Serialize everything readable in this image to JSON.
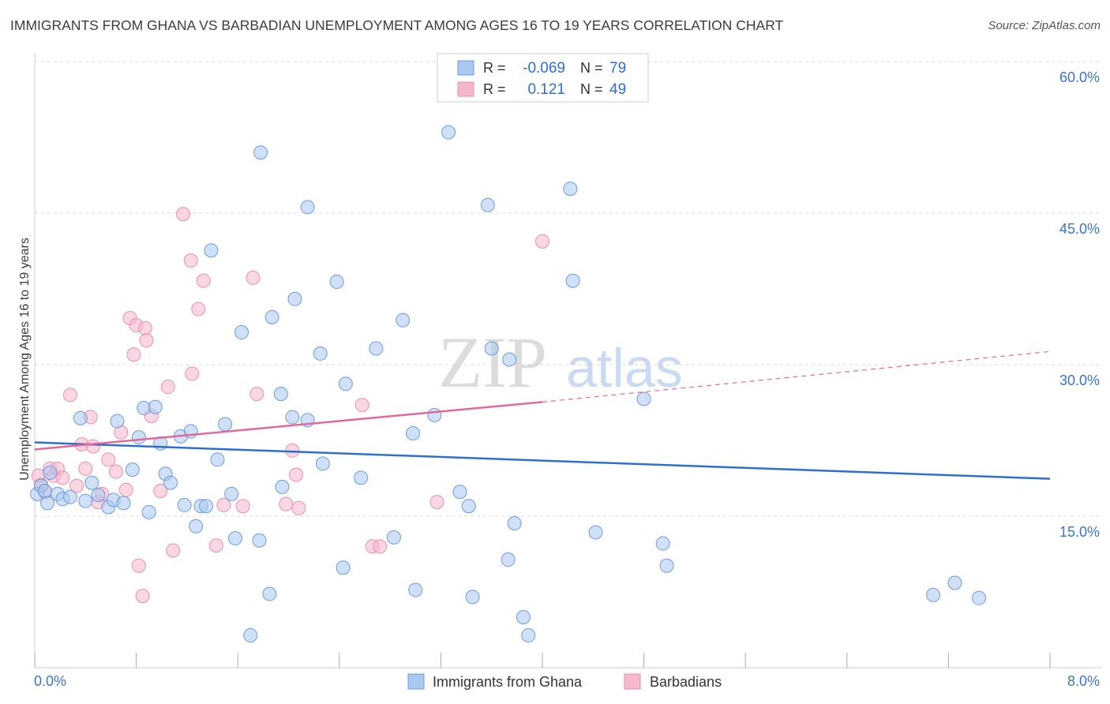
{
  "header": {
    "title": "IMMIGRANTS FROM GHANA VS BARBADIAN UNEMPLOYMENT AMONG AGES 16 TO 19 YEARS CORRELATION CHART",
    "source": "Source: ZipAtlas.com"
  },
  "watermark": {
    "zip": "ZIP",
    "atlas": "atlas"
  },
  "colors": {
    "ghana_fill": "#aac8f0",
    "ghana_stroke": "#6b9be0",
    "ghana_line": "#2d6fcf",
    "barb_fill": "#f5b7cb",
    "barb_stroke": "#e88fae",
    "barb_line": "#e0699a",
    "axis_label": "#3a74c9",
    "grid": "#d8d8d8"
  },
  "legend": {
    "rows": [
      {
        "r_label": "R =",
        "r_value": "-0.069",
        "n_label": "N =",
        "n_value": "79"
      },
      {
        "r_label": "R =",
        "r_value": "0.121",
        "n_label": "N =",
        "n_value": "49"
      }
    ]
  },
  "bottom_legend": [
    {
      "label": "Immigrants from Ghana"
    },
    {
      "label": "Barbadians"
    }
  ],
  "chart_data": {
    "type": "scatter",
    "ylabel": "Unemployment Among Ages 16 to 19 years",
    "xlim": [
      0,
      8
    ],
    "ylim": [
      0,
      60
    ],
    "x_tick_labels": [
      "0.0%",
      "8.0%"
    ],
    "y_tick_labels": [
      "15.0%",
      "30.0%",
      "45.0%",
      "60.0%"
    ],
    "y_ticks": [
      15,
      30,
      45,
      60
    ],
    "series": [
      {
        "name": "Immigrants from Ghana",
        "points": [
          [
            0.02,
            17.2
          ],
          [
            0.05,
            18.0
          ],
          [
            0.08,
            17.5
          ],
          [
            0.1,
            16.3
          ],
          [
            0.12,
            19.3
          ],
          [
            0.18,
            17.2
          ],
          [
            0.22,
            16.7
          ],
          [
            0.28,
            16.9
          ],
          [
            0.36,
            24.7
          ],
          [
            0.4,
            16.5
          ],
          [
            0.45,
            18.3
          ],
          [
            0.5,
            17.1
          ],
          [
            0.58,
            15.9
          ],
          [
            0.62,
            16.6
          ],
          [
            0.65,
            24.4
          ],
          [
            0.7,
            16.3
          ],
          [
            0.77,
            19.6
          ],
          [
            0.82,
            22.8
          ],
          [
            0.86,
            25.7
          ],
          [
            0.9,
            15.4
          ],
          [
            0.95,
            25.8
          ],
          [
            0.99,
            22.2
          ],
          [
            1.03,
            19.2
          ],
          [
            1.07,
            18.3
          ],
          [
            1.15,
            22.9
          ],
          [
            1.18,
            16.1
          ],
          [
            1.23,
            23.4
          ],
          [
            1.27,
            14.0
          ],
          [
            1.31,
            16.0
          ],
          [
            1.35,
            16.0
          ],
          [
            1.39,
            41.3
          ],
          [
            1.44,
            20.6
          ],
          [
            1.5,
            24.1
          ],
          [
            1.55,
            17.2
          ],
          [
            1.58,
            12.8
          ],
          [
            1.63,
            33.2
          ],
          [
            1.7,
            3.2
          ],
          [
            1.77,
            12.6
          ],
          [
            1.78,
            51.0
          ],
          [
            1.85,
            7.3
          ],
          [
            1.87,
            34.7
          ],
          [
            1.94,
            27.1
          ],
          [
            1.95,
            17.9
          ],
          [
            2.03,
            24.8
          ],
          [
            2.05,
            36.5
          ],
          [
            2.15,
            45.6
          ],
          [
            2.15,
            24.5
          ],
          [
            2.25,
            31.1
          ],
          [
            2.27,
            20.2
          ],
          [
            2.38,
            38.2
          ],
          [
            2.43,
            9.9
          ],
          [
            2.45,
            28.1
          ],
          [
            2.57,
            18.8
          ],
          [
            2.69,
            31.6
          ],
          [
            2.83,
            12.9
          ],
          [
            2.9,
            34.4
          ],
          [
            2.98,
            23.2
          ],
          [
            3.0,
            7.7
          ],
          [
            3.15,
            25.0
          ],
          [
            3.26,
            53.0
          ],
          [
            3.35,
            17.4
          ],
          [
            3.42,
            16.0
          ],
          [
            3.45,
            7.0
          ],
          [
            3.57,
            45.8
          ],
          [
            3.6,
            31.6
          ],
          [
            3.73,
            10.7
          ],
          [
            3.74,
            30.5
          ],
          [
            3.78,
            14.3
          ],
          [
            3.85,
            5.0
          ],
          [
            3.89,
            3.2
          ],
          [
            4.22,
            47.4
          ],
          [
            4.24,
            38.3
          ],
          [
            4.42,
            13.4
          ],
          [
            4.8,
            26.6
          ],
          [
            4.95,
            12.3
          ],
          [
            4.98,
            10.1
          ],
          [
            7.08,
            7.2
          ],
          [
            7.25,
            8.4
          ],
          [
            7.44,
            6.9
          ]
        ]
      },
      {
        "name": "Barbadians",
        "points": [
          [
            0.03,
            19.0
          ],
          [
            0.05,
            18.1
          ],
          [
            0.08,
            17.4
          ],
          [
            0.12,
            19.7
          ],
          [
            0.15,
            19.0
          ],
          [
            0.18,
            19.7
          ],
          [
            0.22,
            18.8
          ],
          [
            0.28,
            27.0
          ],
          [
            0.33,
            18.0
          ],
          [
            0.37,
            22.1
          ],
          [
            0.4,
            19.7
          ],
          [
            0.44,
            24.8
          ],
          [
            0.46,
            21.9
          ],
          [
            0.5,
            16.4
          ],
          [
            0.53,
            17.2
          ],
          [
            0.58,
            20.6
          ],
          [
            0.64,
            19.4
          ],
          [
            0.68,
            23.3
          ],
          [
            0.72,
            17.6
          ],
          [
            0.75,
            34.6
          ],
          [
            0.78,
            31.0
          ],
          [
            0.8,
            33.9
          ],
          [
            0.82,
            10.1
          ],
          [
            0.85,
            7.1
          ],
          [
            0.87,
            33.6
          ],
          [
            0.88,
            32.4
          ],
          [
            0.92,
            24.9
          ],
          [
            0.99,
            17.5
          ],
          [
            1.05,
            27.8
          ],
          [
            1.09,
            11.6
          ],
          [
            1.17,
            44.9
          ],
          [
            1.23,
            40.3
          ],
          [
            1.24,
            29.1
          ],
          [
            1.29,
            35.5
          ],
          [
            1.33,
            38.3
          ],
          [
            1.43,
            12.1
          ],
          [
            1.49,
            16.1
          ],
          [
            1.64,
            16.0
          ],
          [
            1.72,
            38.6
          ],
          [
            1.75,
            27.1
          ],
          [
            1.98,
            16.2
          ],
          [
            2.03,
            21.5
          ],
          [
            2.06,
            19.1
          ],
          [
            2.08,
            15.8
          ],
          [
            2.58,
            26.0
          ],
          [
            2.66,
            12.0
          ],
          [
            2.72,
            12.0
          ],
          [
            3.17,
            16.4
          ],
          [
            4.0,
            42.2
          ]
        ]
      }
    ],
    "trendlines": [
      {
        "series": "Immigrants from Ghana",
        "x": [
          0,
          8
        ],
        "y": [
          22.3,
          18.7
        ],
        "style": "solid"
      },
      {
        "series": "Barbadians",
        "x": [
          0,
          4.0
        ],
        "y": [
          21.6,
          26.3
        ],
        "style": "solid"
      },
      {
        "series": "Barbadians",
        "x": [
          4.0,
          8
        ],
        "y": [
          26.3,
          31.3
        ],
        "style": "dashed"
      }
    ],
    "grid": true,
    "legend_position": "top-center"
  }
}
